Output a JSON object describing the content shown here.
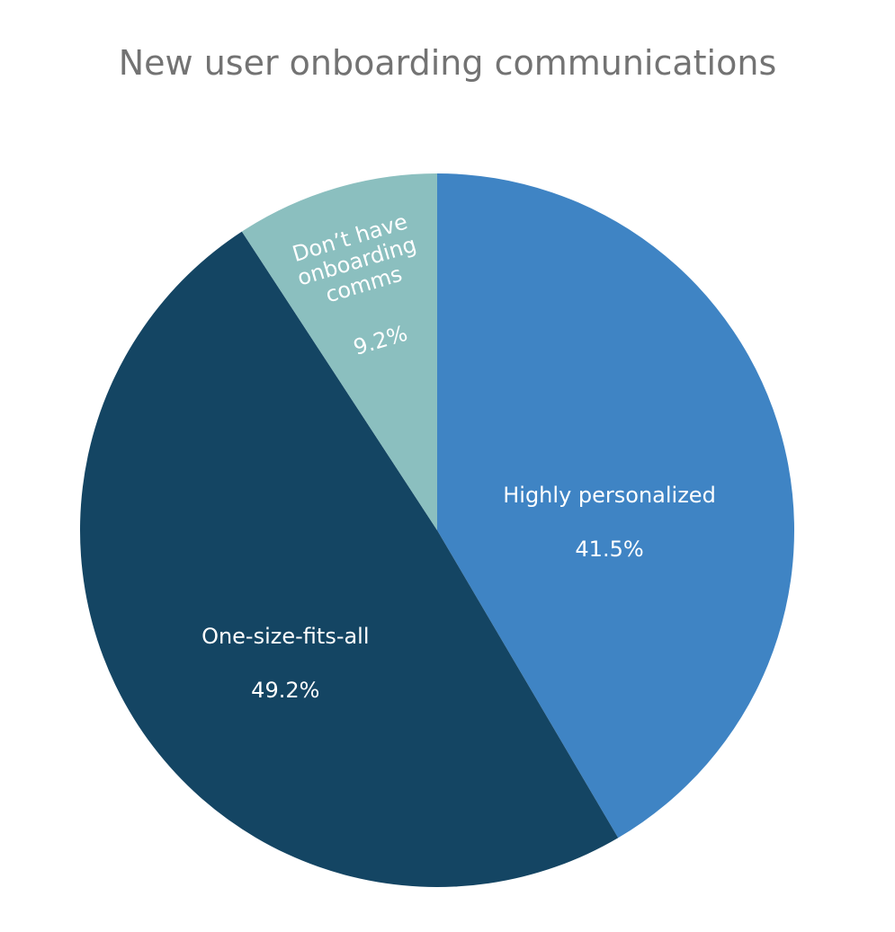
{
  "chart_data": {
    "type": "pie",
    "title": "New user onboarding communications",
    "categories": [
      "Highly personalized",
      "One-size-fits-all",
      "Don’t have onboarding comms"
    ],
    "values": [
      41.5,
      49.2,
      9.2
    ],
    "value_labels": [
      "41.5%",
      "49.2%",
      "9.2%"
    ],
    "colors": [
      "#3f84c4",
      "#144563",
      "#8bbfbf"
    ]
  }
}
